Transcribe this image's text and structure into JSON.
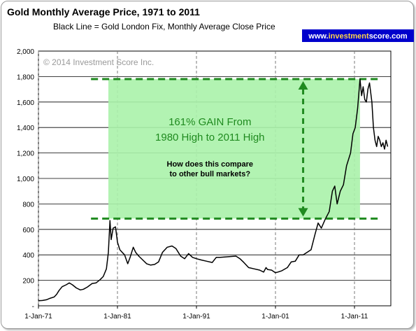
{
  "chart_data": {
    "type": "line",
    "title": "Gold Monthly Average Price, 1971 to 2011",
    "subtitle": "Black Line = Gold London Fix, Monthly Average Close Price",
    "copyright": "© 2014 Investment Score Inc.",
    "brand": {
      "prefix": "www.",
      "highlight": "investment",
      "suffix": "score.com"
    },
    "ylim": [
      0,
      2000
    ],
    "ytick_values": [
      0,
      200,
      400,
      600,
      800,
      1000,
      1200,
      1400,
      1600,
      1800,
      2000
    ],
    "yticks": [
      "-",
      "200",
      "400",
      "600",
      "800",
      "1,000",
      "1,200",
      "1,400",
      "1,600",
      "1,800",
      "2,000"
    ],
    "xlim": [
      1971.0,
      2015.6
    ],
    "xtick_values": [
      1971,
      1981,
      1991,
      2001,
      2011
    ],
    "xticks": [
      "1-Jan-71",
      "1-Jan-81",
      "1-Jan-91",
      "1-Jan-01",
      "1-Jan-11"
    ],
    "grid": true,
    "series": [
      {
        "color": "#000000",
        "x": [
          1971.0,
          1971.5,
          1972.0,
          1972.5,
          1973.0,
          1973.3,
          1973.6,
          1974.0,
          1974.5,
          1974.9,
          1975.3,
          1975.8,
          1976.3,
          1976.7,
          1977.2,
          1977.8,
          1978.3,
          1978.8,
          1979.2,
          1979.6,
          1979.85,
          1980.05,
          1980.2,
          1980.45,
          1980.75,
          1981.0,
          1981.3,
          1981.6,
          1981.9,
          1982.3,
          1982.6,
          1983.0,
          1983.3,
          1983.7,
          1984.2,
          1984.7,
          1985.2,
          1985.7,
          1986.2,
          1986.7,
          1987.3,
          1987.9,
          1988.4,
          1989.0,
          1989.5,
          1990.0,
          1990.5,
          1991.0,
          1991.6,
          1992.3,
          1993.0,
          1993.5,
          1994.0,
          1995.0,
          1996.0,
          1996.5,
          1997.0,
          1997.6,
          1998.3,
          1999.0,
          1999.5,
          1999.8,
          2000.0,
          2000.5,
          2001.0,
          2001.3,
          2001.8,
          2002.5,
          2003.0,
          2003.5,
          2004.0,
          2004.5,
          2005.0,
          2005.5,
          2006.0,
          2006.4,
          2006.8,
          2007.3,
          2007.8,
          2008.2,
          2008.5,
          2008.8,
          2009.2,
          2009.6,
          2010.0,
          2010.5,
          2010.8,
          2011.1,
          2011.4,
          2011.7,
          2011.9,
          2012.1,
          2012.3,
          2012.5,
          2012.7,
          2012.9,
          2013.2,
          2013.4,
          2013.6,
          2013.8,
          2014.0,
          2014.2,
          2014.4,
          2014.6,
          2014.8,
          2015.0,
          2015.2
        ],
        "values": [
          40,
          42,
          47,
          60,
          70,
          90,
          120,
          150,
          165,
          180,
          165,
          140,
          125,
          130,
          148,
          175,
          180,
          205,
          230,
          290,
          420,
          670,
          520,
          610,
          620,
          500,
          440,
          420,
          400,
          330,
          380,
          460,
          420,
          390,
          360,
          330,
          320,
          325,
          345,
          420,
          460,
          470,
          450,
          390,
          370,
          410,
          380,
          370,
          360,
          350,
          340,
          380,
          380,
          385,
          390,
          370,
          340,
          300,
          290,
          280,
          265,
          300,
          285,
          280,
          260,
          265,
          275,
          300,
          345,
          350,
          400,
          400,
          420,
          440,
          560,
          650,
          610,
          680,
          740,
          900,
          940,
          800,
          900,
          950,
          1100,
          1200,
          1350,
          1400,
          1550,
          1780,
          1650,
          1720,
          1620,
          1600,
          1700,
          1750,
          1600,
          1400,
          1300,
          1250,
          1330,
          1300,
          1250,
          1280,
          1230,
          1300,
          1250
        ]
      }
    ],
    "annotation": {
      "band": [
        685,
        1780
      ],
      "x_range": [
        1979.85,
        2011.7
      ],
      "arrow_x": 2004.5,
      "lines": [
        "161% GAIN From",
        "1980 High to 2011 High"
      ],
      "question": [
        "How does this compare",
        "to other bull markets?"
      ],
      "colors": {
        "band": "#aaf2aa",
        "dash": "#1f8a1f",
        "text": "#1f8a1f"
      }
    }
  }
}
